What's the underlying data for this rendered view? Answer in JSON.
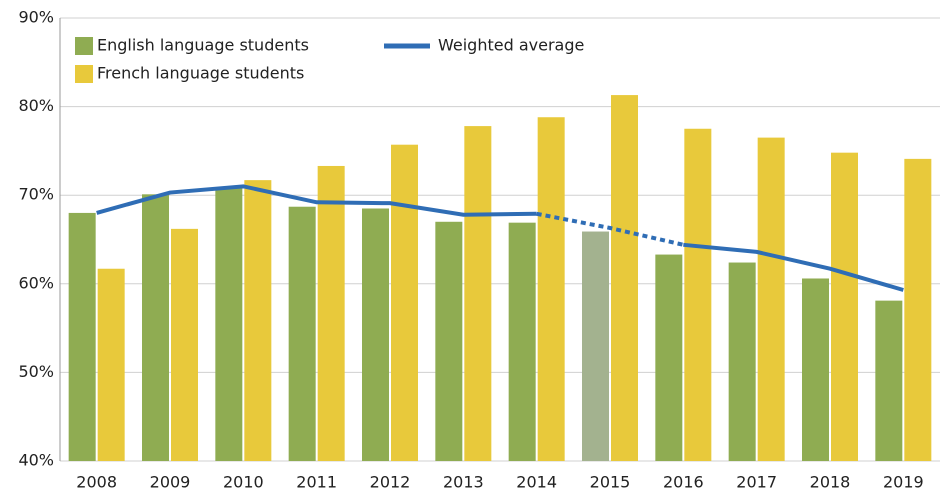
{
  "chart_data": {
    "type": "bar_line",
    "categories": [
      "2008",
      "2009",
      "2010",
      "2011",
      "2012",
      "2013",
      "2014",
      "2015",
      "2016",
      "2017",
      "2018",
      "2019"
    ],
    "series": [
      {
        "name": "English language students",
        "type": "bar",
        "color": "#8fac52",
        "values": [
          68.0,
          70.1,
          70.8,
          68.7,
          68.5,
          67.0,
          66.9,
          65.9,
          63.3,
          62.4,
          60.6,
          58.1
        ]
      },
      {
        "name": "French language students",
        "type": "bar",
        "color": "#e8c93b",
        "values": [
          61.7,
          66.2,
          71.7,
          73.3,
          75.7,
          77.8,
          78.8,
          81.3,
          77.5,
          76.5,
          74.8,
          74.1
        ]
      },
      {
        "name": "Weighted average",
        "type": "line",
        "color": "#2f6db5",
        "values": [
          68.0,
          70.3,
          71.0,
          69.2,
          69.1,
          67.8,
          67.9,
          66.3,
          64.4,
          63.6,
          61.7,
          59.3
        ]
      }
    ],
    "estimated": [
      7
    ],
    "estimated_color": "#a3b28f",
    "ylim": [
      40,
      90
    ],
    "yticks": [
      {
        "value": 40,
        "label": "40%"
      },
      {
        "value": 50,
        "label": "50%"
      },
      {
        "value": 60,
        "label": "60%"
      },
      {
        "value": 70,
        "label": "70%"
      },
      {
        "value": 80,
        "label": "80%"
      },
      {
        "value": 90,
        "label": "90%"
      }
    ],
    "grid": true,
    "legend": "top-left"
  }
}
